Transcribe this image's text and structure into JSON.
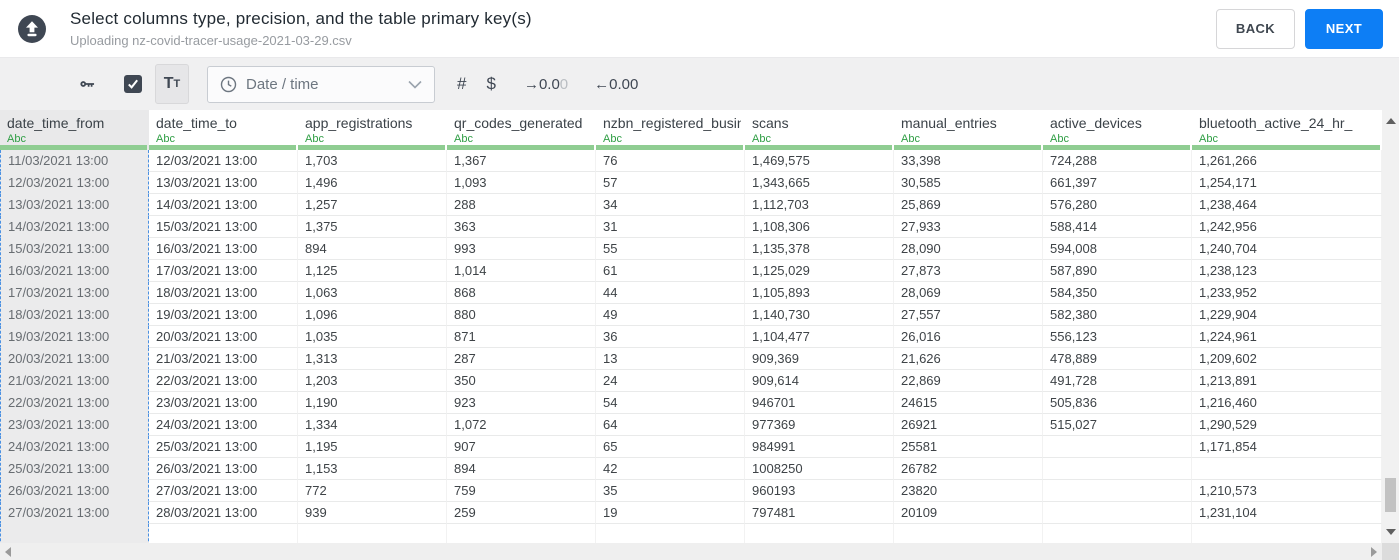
{
  "header": {
    "title": "Select columns type, precision, and the table primary key(s)",
    "subtitle": "Uploading nz-covid-tracer-usage-2021-03-29.csv",
    "back_label": "BACK",
    "next_label": "NEXT"
  },
  "toolbar": {
    "text_format": {
      "big": "T",
      "small": "T"
    },
    "type_select": {
      "value": "Date / time"
    },
    "hash_label": "#",
    "dollar_label": "$",
    "precision_decrease": {
      "main": "→0.0",
      "muted": "0"
    },
    "precision_increase": "←0.00",
    "checkbox_checked": true
  },
  "icons": [
    "upload-cloud-icon",
    "key-icon",
    "checkbox-check-icon",
    "clock-icon",
    "chevron-down-icon",
    "hash-icon",
    "dollar-icon",
    "scroll-up-icon",
    "scroll-down-icon",
    "scroll-left-icon",
    "scroll-right-icon"
  ],
  "colors": {
    "primary_blue": "#0d7ef5",
    "type_green": "#2f9e44",
    "type_underline_green": "#8fcd92",
    "selected_column_dash_blue": "#4a90e2",
    "toolbar_icon_dark": "#3f4753"
  },
  "table": {
    "selected_column": "date_time_from",
    "columns": [
      {
        "name": "date_time_from",
        "type": "Abc"
      },
      {
        "name": "date_time_to",
        "type": "Abc"
      },
      {
        "name": "app_registrations",
        "type": "Abc"
      },
      {
        "name": "qr_codes_generated",
        "type": "Abc"
      },
      {
        "name": "nzbn_registered_busine",
        "type": "Abc"
      },
      {
        "name": "scans",
        "type": "Abc"
      },
      {
        "name": "manual_entries",
        "type": "Abc"
      },
      {
        "name": "active_devices",
        "type": "Abc"
      },
      {
        "name": "bluetooth_active_24_hr_",
        "type": "Abc"
      }
    ],
    "rows": [
      [
        "11/03/2021 13:00",
        "12/03/2021 13:00",
        "1,703",
        "1,367",
        "76",
        "1,469,575",
        "33,398",
        "724,288",
        "1,261,266"
      ],
      [
        "12/03/2021 13:00",
        "13/03/2021 13:00",
        "1,496",
        "1,093",
        "57",
        "1,343,665",
        "30,585",
        "661,397",
        "1,254,171"
      ],
      [
        "13/03/2021 13:00",
        "14/03/2021 13:00",
        "1,257",
        "288",
        "34",
        "1,112,703",
        "25,869",
        "576,280",
        "1,238,464"
      ],
      [
        "14/03/2021 13:00",
        "15/03/2021 13:00",
        "1,375",
        "363",
        "31",
        "1,108,306",
        "27,933",
        "588,414",
        "1,242,956"
      ],
      [
        "15/03/2021 13:00",
        "16/03/2021 13:00",
        "894",
        "993",
        "55",
        "1,135,378",
        "28,090",
        "594,008",
        "1,240,704"
      ],
      [
        "16/03/2021 13:00",
        "17/03/2021 13:00",
        "1,125",
        "1,014",
        "61",
        "1,125,029",
        "27,873",
        "587,890",
        "1,238,123"
      ],
      [
        "17/03/2021 13:00",
        "18/03/2021 13:00",
        "1,063",
        "868",
        "44",
        "1,105,893",
        "28,069",
        "584,350",
        "1,233,952"
      ],
      [
        "18/03/2021 13:00",
        "19/03/2021 13:00",
        "1,096",
        "880",
        "49",
        "1,140,730",
        "27,557",
        "582,380",
        "1,229,904"
      ],
      [
        "19/03/2021 13:00",
        "20/03/2021 13:00",
        "1,035",
        "871",
        "36",
        "1,104,477",
        "26,016",
        "556,123",
        "1,224,961"
      ],
      [
        "20/03/2021 13:00",
        "21/03/2021 13:00",
        "1,313",
        "287",
        "13",
        "909,369",
        "21,626",
        "478,889",
        "1,209,602"
      ],
      [
        "21/03/2021 13:00",
        "22/03/2021 13:00",
        "1,203",
        "350",
        "24",
        "909,614",
        "22,869",
        "491,728",
        "1,213,891"
      ],
      [
        "22/03/2021 13:00",
        "23/03/2021 13:00",
        "1,190",
        "923",
        "54",
        "946701",
        "24615",
        "505,836",
        "1,216,460"
      ],
      [
        "23/03/2021 13:00",
        "24/03/2021 13:00",
        "1,334",
        "1,072",
        "64",
        "977369",
        "26921",
        "515,027",
        "1,290,529"
      ],
      [
        "24/03/2021 13:00",
        "25/03/2021 13:00",
        "1,195",
        "907",
        "65",
        "984991",
        "25581",
        "",
        "1,171,854"
      ],
      [
        "25/03/2021 13:00",
        "26/03/2021 13:00",
        "1,153",
        "894",
        "42",
        "1008250",
        "26782",
        "",
        ""
      ],
      [
        "26/03/2021 13:00",
        "27/03/2021 13:00",
        "772",
        "759",
        "35",
        "960193",
        "23820",
        "",
        "1,210,573"
      ],
      [
        "27/03/2021 13:00",
        "28/03/2021 13:00",
        "939",
        "259",
        "19",
        "797481",
        "20109",
        "",
        "1,231,104"
      ]
    ]
  }
}
